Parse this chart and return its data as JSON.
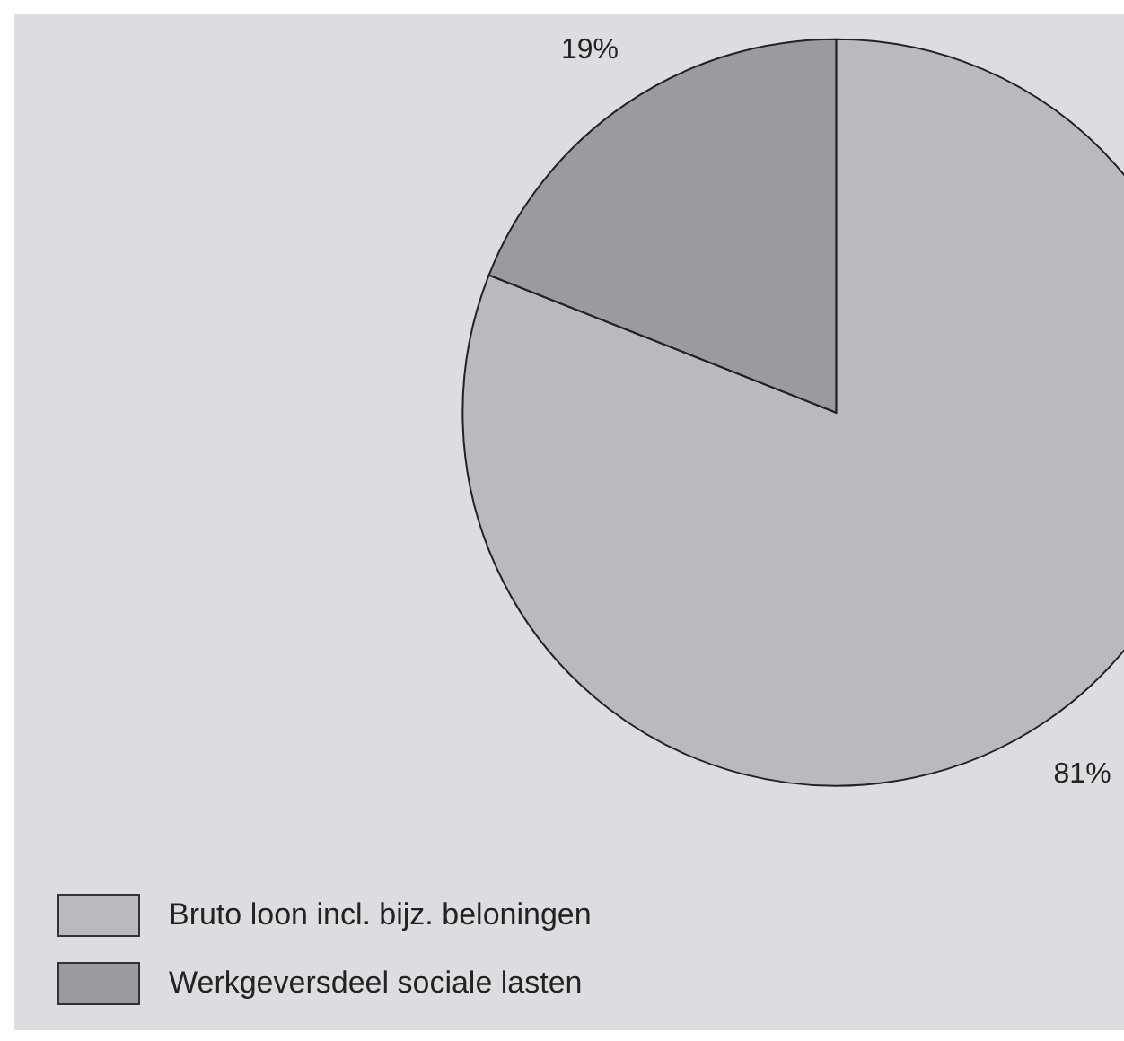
{
  "chart_data": {
    "type": "pie",
    "categories": [
      "Bruto loon incl. bijz. beloningen",
      "Werkgeversdeel sociale lasten"
    ],
    "values": [
      81,
      19
    ],
    "colors": [
      "#b9babe",
      "#9a9b9e"
    ],
    "value_labels": [
      "81%",
      "19%"
    ],
    "legend": "bottom left"
  }
}
